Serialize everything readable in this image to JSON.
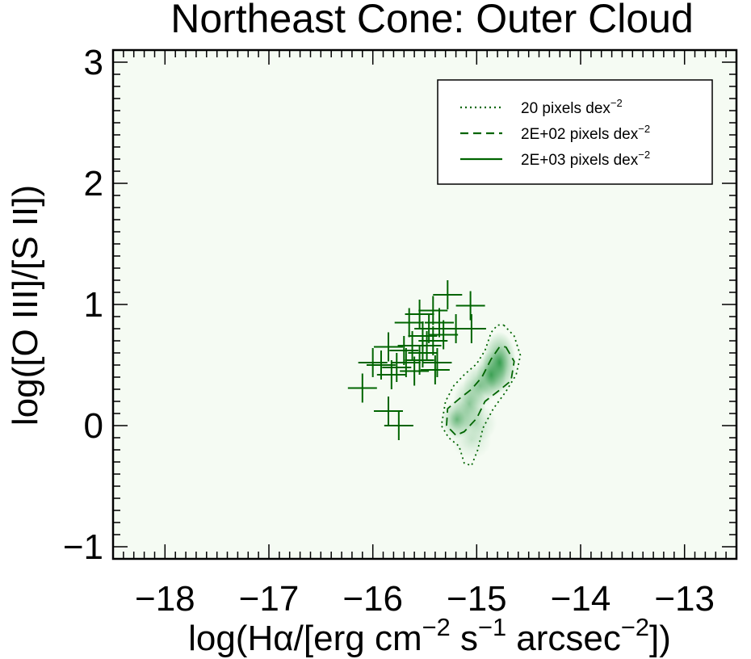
{
  "chart_data": {
    "type": "scatter",
    "title": "Northeast Cone: Outer Cloud",
    "xlabel": {
      "pre": "log(H",
      "greek": "α",
      "post1": "/[erg cm",
      "sup1": "−2",
      "mid1": " s",
      "sup2": "−1",
      "mid2": " arcsec",
      "sup3": "−2",
      "post2": "])"
    },
    "ylabel": "log([O III]/[S II])",
    "xlim": [
      -18.5,
      -12.5
    ],
    "ylim": [
      -1.1,
      3.1
    ],
    "xticks": [
      -18,
      -17,
      -16,
      -15,
      -14,
      -13
    ],
    "xtick_labels": [
      "−18",
      "−17",
      "−16",
      "−15",
      "−14",
      "−13"
    ],
    "yticks": [
      -1,
      0,
      1,
      2,
      3
    ],
    "ytick_labels": [
      "−1",
      "0",
      "1",
      "2",
      "3"
    ],
    "grid": false,
    "legend_position": "top-right",
    "colors": {
      "series": "#006400",
      "background": "#f5fbf3",
      "density": "#2e9a48"
    },
    "legend": [
      {
        "label": "20 pixels dex",
        "sup": "−2",
        "style": "dotted"
      },
      {
        "label": "2E+02 pixels dex",
        "sup": "−2",
        "style": "dashed"
      },
      {
        "label": "2E+03 pixels dex",
        "sup": "−2",
        "style": "solid"
      }
    ],
    "points": [
      {
        "x": -15.28,
        "y": 1.08
      },
      {
        "x": -15.42,
        "y": 0.95
      },
      {
        "x": -15.55,
        "y": 0.92
      },
      {
        "x": -15.65,
        "y": 0.85
      },
      {
        "x": -15.36,
        "y": 0.85
      },
      {
        "x": -15.06,
        "y": 0.99
      },
      {
        "x": -15.05,
        "y": 0.8
      },
      {
        "x": -15.2,
        "y": 0.8
      },
      {
        "x": -15.46,
        "y": 0.8
      },
      {
        "x": -15.52,
        "y": 0.74
      },
      {
        "x": -15.32,
        "y": 0.75
      },
      {
        "x": -15.42,
        "y": 0.7
      },
      {
        "x": -15.48,
        "y": 0.66
      },
      {
        "x": -15.62,
        "y": 0.66
      },
      {
        "x": -15.7,
        "y": 0.62
      },
      {
        "x": -15.52,
        "y": 0.6
      },
      {
        "x": -15.85,
        "y": 0.65
      },
      {
        "x": -15.92,
        "y": 0.5
      },
      {
        "x": -16.0,
        "y": 0.52
      },
      {
        "x": -15.68,
        "y": 0.52
      },
      {
        "x": -15.6,
        "y": 0.45
      },
      {
        "x": -15.4,
        "y": 0.46
      },
      {
        "x": -15.38,
        "y": 0.52
      },
      {
        "x": -15.77,
        "y": 0.48
      },
      {
        "x": -15.82,
        "y": 0.42
      },
      {
        "x": -15.55,
        "y": 0.54
      },
      {
        "x": -16.1,
        "y": 0.31
      },
      {
        "x": -15.85,
        "y": 0.12
      },
      {
        "x": -15.75,
        "y": 0.0
      }
    ],
    "density_blobs": [
      {
        "x": -14.78,
        "y": 0.52,
        "sx": 0.1,
        "sy": 0.16,
        "a": 0.95
      },
      {
        "x": -14.86,
        "y": 0.42,
        "sx": 0.09,
        "sy": 0.12,
        "a": 0.9
      },
      {
        "x": -14.97,
        "y": 0.33,
        "sx": 0.1,
        "sy": 0.11,
        "a": 0.55
      },
      {
        "x": -15.07,
        "y": 0.18,
        "sx": 0.1,
        "sy": 0.13,
        "a": 0.55
      },
      {
        "x": -15.19,
        "y": 0.05,
        "sx": 0.09,
        "sy": 0.1,
        "a": 0.7
      },
      {
        "x": -15.0,
        "y": 0.02,
        "sx": 0.12,
        "sy": 0.1,
        "a": 0.3
      },
      {
        "x": -15.05,
        "y": -0.12,
        "sx": 0.12,
        "sy": 0.1,
        "a": 0.22
      }
    ],
    "contours": {
      "dotted": [
        [
          -14.74,
          0.83
        ],
        [
          -14.64,
          0.74
        ],
        [
          -14.58,
          0.58
        ],
        [
          -14.62,
          0.42
        ],
        [
          -14.72,
          0.28
        ],
        [
          -14.84,
          0.14
        ],
        [
          -14.94,
          -0.02
        ],
        [
          -14.99,
          -0.2
        ],
        [
          -15.05,
          -0.33
        ],
        [
          -15.12,
          -0.31
        ],
        [
          -15.17,
          -0.17
        ],
        [
          -15.27,
          -0.1
        ],
        [
          -15.34,
          0.0
        ],
        [
          -15.3,
          0.2
        ],
        [
          -15.22,
          0.33
        ],
        [
          -15.12,
          0.42
        ],
        [
          -15.0,
          0.51
        ],
        [
          -14.92,
          0.62
        ],
        [
          -14.86,
          0.77
        ],
        [
          -14.8,
          0.83
        ],
        [
          -14.74,
          0.83
        ]
      ],
      "dashed": [
        [
          -14.72,
          0.65
        ],
        [
          -14.64,
          0.53
        ],
        [
          -14.67,
          0.37
        ],
        [
          -14.8,
          0.28
        ],
        [
          -14.92,
          0.2
        ],
        [
          -15.0,
          0.06
        ],
        [
          -15.12,
          -0.05
        ],
        [
          -15.2,
          -0.08
        ],
        [
          -15.29,
          0.0
        ],
        [
          -15.28,
          0.14
        ],
        [
          -15.17,
          0.22
        ],
        [
          -15.05,
          0.3
        ],
        [
          -14.95,
          0.4
        ],
        [
          -14.86,
          0.55
        ],
        [
          -14.78,
          0.65
        ],
        [
          -14.72,
          0.65
        ]
      ]
    }
  }
}
